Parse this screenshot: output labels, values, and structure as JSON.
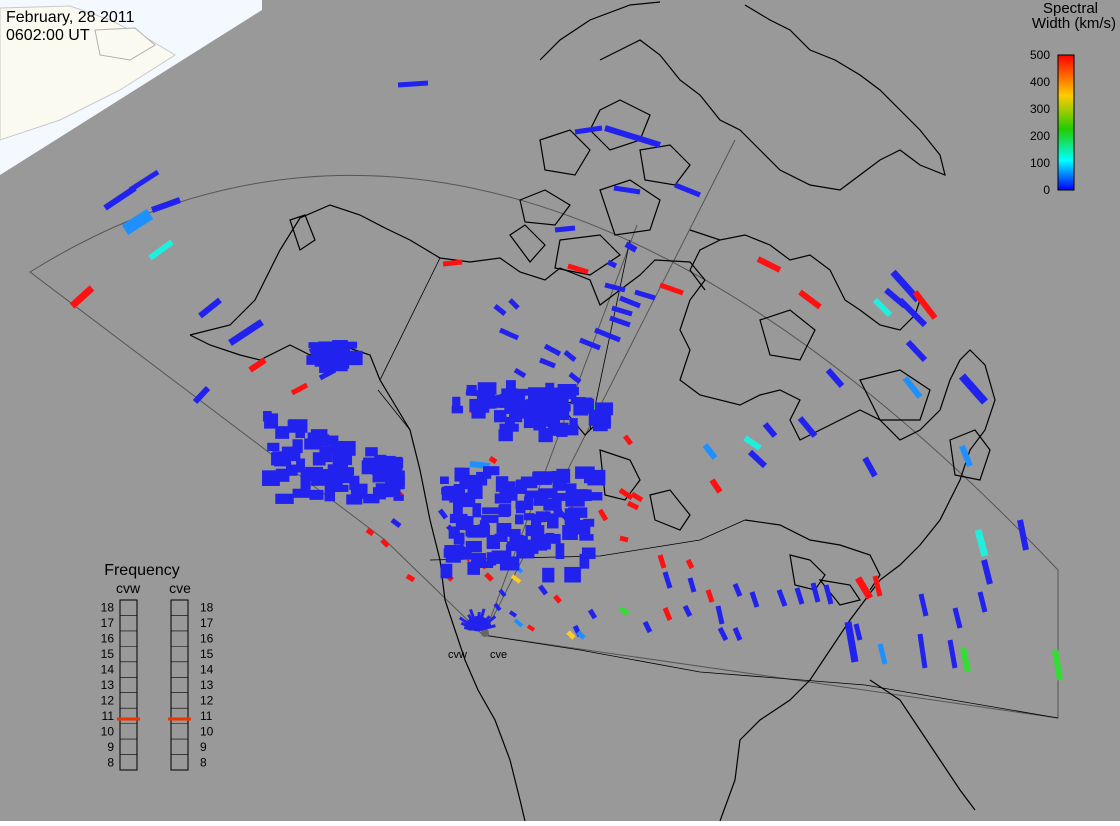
{
  "header": {
    "date": "February, 28 2011",
    "time": "0602:00 UT"
  },
  "colorbar": {
    "title_line1": "Spectral",
    "title_line2": "Width (km/s)",
    "ticks": [
      "500",
      "400",
      "300",
      "200",
      "100",
      "0"
    ],
    "stops": [
      "#ff0000",
      "#ffcc00",
      "#22cc00",
      "#00ffff",
      "#0000ff"
    ]
  },
  "frequency": {
    "title": "Frequency",
    "radar_left": "cvw",
    "radar_right": "cve",
    "ticks": [
      "18",
      "17",
      "16",
      "15",
      "14",
      "13",
      "12",
      "11",
      "10",
      "9",
      "8"
    ],
    "cvw_value_mhz": 10.8,
    "cve_value_mhz": 10.8
  },
  "radar_labels": {
    "west": "cvw",
    "east": "cve"
  },
  "colors": {
    "background": "#999999",
    "sunlit": "#fafaf0",
    "ocean_sunlit": "#e8f4ff",
    "coastline": "#000000",
    "fov_outline": "#555555",
    "freq_marker": "#ee3300"
  }
}
